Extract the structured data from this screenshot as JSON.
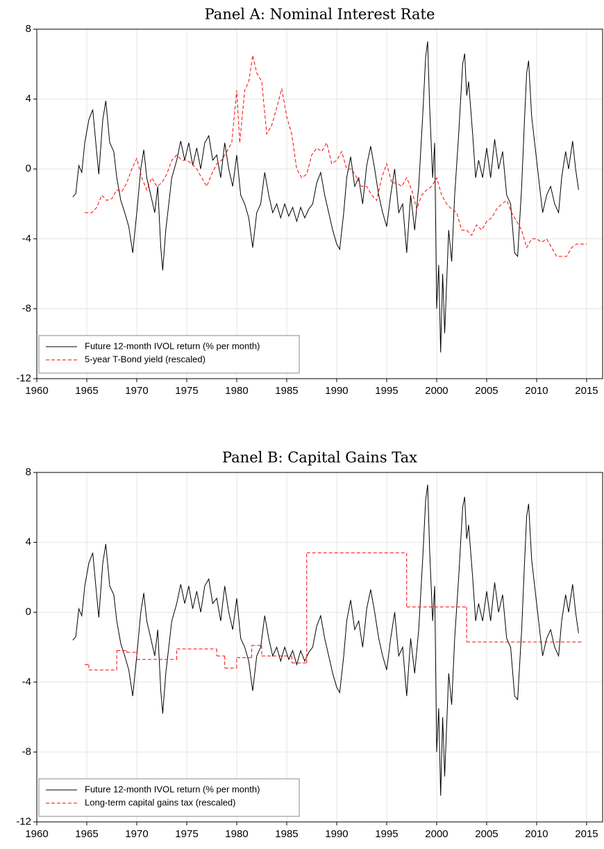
{
  "chart_data": [
    {
      "type": "line",
      "title": "Panel A: Nominal Interest Rate",
      "xlim": [
        1960,
        2016.6
      ],
      "ylim": [
        -12,
        8
      ],
      "xticks": [
        1960,
        1965,
        1970,
        1975,
        1980,
        1985,
        1990,
        1995,
        2000,
        2005,
        2010,
        2015
      ],
      "yticks": [
        -12,
        -8,
        -4,
        0,
        4,
        8
      ],
      "grid": true,
      "legend": "lower left",
      "series": [
        {
          "name": "Future 12-month IVOL return (% per month)",
          "color": "#000000",
          "dash": "solid",
          "x": [
            1963.6,
            1963.9,
            1964.2,
            1964.5,
            1964.8,
            1965.2,
            1965.6,
            1965.9,
            1966.2,
            1966.6,
            1966.9,
            1967.3,
            1967.7,
            1968.0,
            1968.4,
            1968.8,
            1969.2,
            1969.6,
            1970.0,
            1970.4,
            1970.7,
            1971.0,
            1971.4,
            1971.8,
            1972.1,
            1972.4,
            1972.6,
            1972.9,
            1973.2,
            1973.5,
            1974.0,
            1974.4,
            1974.8,
            1975.2,
            1975.6,
            1976.0,
            1976.4,
            1976.8,
            1977.2,
            1977.6,
            1978.0,
            1978.4,
            1978.8,
            1979.2,
            1979.6,
            1980.0,
            1980.4,
            1980.8,
            1981.2,
            1981.6,
            1982.0,
            1982.4,
            1982.8,
            1983.2,
            1983.6,
            1984.0,
            1984.4,
            1984.8,
            1985.2,
            1985.6,
            1986.0,
            1986.4,
            1986.8,
            1987.2,
            1987.6,
            1988.0,
            1988.4,
            1988.8,
            1989.2,
            1989.6,
            1990.0,
            1990.3,
            1990.7,
            1991.0,
            1991.4,
            1991.8,
            1992.2,
            1992.6,
            1993.0,
            1993.4,
            1993.8,
            1994.2,
            1994.6,
            1995.0,
            1995.4,
            1995.8,
            1996.2,
            1996.6,
            1997.0,
            1997.4,
            1997.8,
            1998.2,
            1998.6,
            1998.9,
            1999.1,
            1999.3,
            1999.6,
            1999.8,
            2000.0,
            2000.2,
            2000.4,
            2000.6,
            2000.8,
            2001.2,
            2001.5,
            2001.8,
            2002.2,
            2002.6,
            2002.8,
            2003.0,
            2003.2,
            2003.6,
            2003.9,
            2004.2,
            2004.6,
            2005.0,
            2005.4,
            2005.8,
            2006.2,
            2006.6,
            2007.0,
            2007.4,
            2007.8,
            2008.1,
            2008.5,
            2008.8,
            2009.0,
            2009.2,
            2009.5,
            2009.8,
            2010.2,
            2010.6,
            2011.0,
            2011.4,
            2011.8,
            2012.2,
            2012.5,
            2012.9,
            2013.2,
            2013.6,
            2013.9,
            2014.2
          ],
          "values": [
            -1.6,
            -1.4,
            0.2,
            -0.2,
            1.5,
            2.8,
            3.4,
            1.5,
            -0.3,
            2.8,
            3.9,
            1.5,
            1.0,
            -0.5,
            -1.8,
            -2.5,
            -3.3,
            -4.8,
            -2.5,
            0.0,
            1.1,
            -0.5,
            -1.5,
            -2.5,
            -1.0,
            -4.5,
            -5.8,
            -3.5,
            -2.0,
            -0.5,
            0.5,
            1.6,
            0.5,
            1.5,
            0.2,
            1.2,
            0.0,
            1.5,
            1.9,
            0.5,
            0.8,
            -0.5,
            1.5,
            0.0,
            -1.0,
            0.8,
            -1.5,
            -2.0,
            -2.8,
            -4.5,
            -2.5,
            -2.0,
            -0.2,
            -1.5,
            -2.5,
            -2.0,
            -2.8,
            -2.0,
            -2.7,
            -2.2,
            -3.0,
            -2.2,
            -2.8,
            -2.3,
            -2.0,
            -0.8,
            -0.2,
            -1.5,
            -2.5,
            -3.5,
            -4.3,
            -4.6,
            -2.5,
            -0.5,
            0.7,
            -1.0,
            -0.5,
            -2.0,
            0.2,
            1.3,
            0.0,
            -1.5,
            -2.5,
            -3.3,
            -1.5,
            0.0,
            -2.5,
            -2.0,
            -4.8,
            -1.5,
            -3.5,
            -1.0,
            3.0,
            6.4,
            7.3,
            3.5,
            -0.5,
            1.5,
            -8.0,
            -5.5,
            -10.5,
            -6.0,
            -9.4,
            -3.5,
            -5.3,
            -1.5,
            2.0,
            6.0,
            6.6,
            4.2,
            5.0,
            2.0,
            -0.5,
            0.5,
            -0.5,
            1.2,
            -0.5,
            1.7,
            0.0,
            1.0,
            -1.5,
            -2.0,
            -4.8,
            -5.0,
            -1.0,
            3.0,
            5.5,
            6.2,
            3.0,
            1.5,
            -0.5,
            -2.5,
            -1.5,
            -1.0,
            -2.0,
            -2.5,
            -0.5,
            1.0,
            0.0,
            1.6,
            0.0,
            -1.2
          ]
        },
        {
          "name": "5-year T-Bond yield (rescaled)",
          "color": "#ff0000",
          "dash": "dashed",
          "x": [
            1964.8,
            1965.5,
            1966.0,
            1966.5,
            1967.0,
            1967.5,
            1968.0,
            1968.5,
            1969.0,
            1969.5,
            1970.0,
            1970.5,
            1971.0,
            1971.5,
            1972.0,
            1972.5,
            1973.0,
            1973.5,
            1974.0,
            1974.5,
            1975.0,
            1975.5,
            1976.0,
            1976.5,
            1977.0,
            1977.5,
            1978.0,
            1978.5,
            1979.0,
            1979.5,
            1980.0,
            1980.3,
            1980.8,
            1981.2,
            1981.6,
            1982.0,
            1982.5,
            1983.0,
            1983.5,
            1984.0,
            1984.5,
            1985.0,
            1985.5,
            1986.0,
            1986.5,
            1987.0,
            1987.5,
            1988.0,
            1988.5,
            1989.0,
            1989.5,
            1990.0,
            1990.5,
            1991.0,
            1991.5,
            1992.0,
            1992.5,
            1993.0,
            1993.5,
            1994.0,
            1994.5,
            1995.0,
            1995.5,
            1996.0,
            1996.5,
            1997.0,
            1997.5,
            1998.0,
            1998.5,
            1999.0,
            1999.5,
            2000.0,
            2000.5,
            2001.0,
            2001.5,
            2002.0,
            2002.5,
            2003.0,
            2003.5,
            2004.0,
            2004.5,
            2005.0,
            2005.5,
            2006.0,
            2006.5,
            2007.0,
            2007.5,
            2008.0,
            2008.5,
            2009.0,
            2009.5,
            2010.0,
            2010.5,
            2011.0,
            2011.5,
            2012.0,
            2012.5,
            2013.0,
            2013.5,
            2014.0,
            2014.5,
            2015.0
          ],
          "values": [
            -2.5,
            -2.5,
            -2.2,
            -1.5,
            -1.8,
            -1.7,
            -1.2,
            -1.3,
            -0.8,
            0.0,
            0.6,
            -0.5,
            -1.2,
            -0.5,
            -1.0,
            -0.8,
            -0.3,
            0.5,
            0.8,
            0.5,
            0.5,
            0.3,
            0.0,
            -0.5,
            -1.0,
            -0.3,
            0.3,
            0.5,
            1.0,
            1.5,
            4.5,
            1.5,
            4.5,
            5.0,
            6.5,
            5.5,
            5.0,
            2.0,
            2.5,
            3.5,
            4.6,
            3.0,
            2.0,
            0.0,
            -0.5,
            -0.3,
            0.8,
            1.2,
            1.0,
            1.5,
            0.3,
            0.5,
            1.0,
            0.0,
            0.0,
            -0.5,
            -1.0,
            -1.0,
            -1.5,
            -1.8,
            -0.5,
            0.3,
            -0.8,
            -0.8,
            -1.0,
            -0.5,
            -1.2,
            -2.3,
            -1.5,
            -1.2,
            -1.0,
            -0.5,
            -1.5,
            -2.0,
            -2.3,
            -2.5,
            -3.5,
            -3.5,
            -3.8,
            -3.2,
            -3.5,
            -3.0,
            -2.8,
            -2.3,
            -2.0,
            -1.8,
            -2.5,
            -3.0,
            -3.5,
            -4.5,
            -4.0,
            -4.0,
            -4.2,
            -4.0,
            -4.5,
            -5.0,
            -5.0,
            -5.0,
            -4.5,
            -4.3,
            -4.3,
            -4.3
          ]
        }
      ]
    },
    {
      "type": "line",
      "title": "Panel B: Capital Gains Tax",
      "xlim": [
        1960,
        2016.6
      ],
      "ylim": [
        -12,
        8
      ],
      "xticks": [
        1960,
        1965,
        1970,
        1975,
        1980,
        1985,
        1990,
        1995,
        2000,
        2005,
        2010,
        2015
      ],
      "yticks": [
        -12,
        -8,
        -4,
        0,
        4,
        8
      ],
      "grid": true,
      "legend": "lower left",
      "series": [
        {
          "name": "Future 12-month IVOL return (% per month)",
          "color": "#000000",
          "dash": "solid",
          "x": [
            1963.6,
            1963.9,
            1964.2,
            1964.5,
            1964.8,
            1965.2,
            1965.6,
            1965.9,
            1966.2,
            1966.6,
            1966.9,
            1967.3,
            1967.7,
            1968.0,
            1968.4,
            1968.8,
            1969.2,
            1969.6,
            1970.0,
            1970.4,
            1970.7,
            1971.0,
            1971.4,
            1971.8,
            1972.1,
            1972.4,
            1972.6,
            1972.9,
            1973.2,
            1973.5,
            1974.0,
            1974.4,
            1974.8,
            1975.2,
            1975.6,
            1976.0,
            1976.4,
            1976.8,
            1977.2,
            1977.6,
            1978.0,
            1978.4,
            1978.8,
            1979.2,
            1979.6,
            1980.0,
            1980.4,
            1980.8,
            1981.2,
            1981.6,
            1982.0,
            1982.4,
            1982.8,
            1983.2,
            1983.6,
            1984.0,
            1984.4,
            1984.8,
            1985.2,
            1985.6,
            1986.0,
            1986.4,
            1986.8,
            1987.2,
            1987.6,
            1988.0,
            1988.4,
            1988.8,
            1989.2,
            1989.6,
            1990.0,
            1990.3,
            1990.7,
            1991.0,
            1991.4,
            1991.8,
            1992.2,
            1992.6,
            1993.0,
            1993.4,
            1993.8,
            1994.2,
            1994.6,
            1995.0,
            1995.4,
            1995.8,
            1996.2,
            1996.6,
            1997.0,
            1997.4,
            1997.8,
            1998.2,
            1998.6,
            1998.9,
            1999.1,
            1999.3,
            1999.6,
            1999.8,
            2000.0,
            2000.2,
            2000.4,
            2000.6,
            2000.8,
            2001.2,
            2001.5,
            2001.8,
            2002.2,
            2002.6,
            2002.8,
            2003.0,
            2003.2,
            2003.6,
            2003.9,
            2004.2,
            2004.6,
            2005.0,
            2005.4,
            2005.8,
            2006.2,
            2006.6,
            2007.0,
            2007.4,
            2007.8,
            2008.1,
            2008.5,
            2008.8,
            2009.0,
            2009.2,
            2009.5,
            2009.8,
            2010.2,
            2010.6,
            2011.0,
            2011.4,
            2011.8,
            2012.2,
            2012.5,
            2012.9,
            2013.2,
            2013.6,
            2013.9,
            2014.2
          ],
          "values": [
            -1.6,
            -1.4,
            0.2,
            -0.2,
            1.5,
            2.8,
            3.4,
            1.5,
            -0.3,
            2.8,
            3.9,
            1.5,
            1.0,
            -0.5,
            -1.8,
            -2.5,
            -3.3,
            -4.8,
            -2.5,
            0.0,
            1.1,
            -0.5,
            -1.5,
            -2.5,
            -1.0,
            -4.5,
            -5.8,
            -3.5,
            -2.0,
            -0.5,
            0.5,
            1.6,
            0.5,
            1.5,
            0.2,
            1.2,
            0.0,
            1.5,
            1.9,
            0.5,
            0.8,
            -0.5,
            1.5,
            0.0,
            -1.0,
            0.8,
            -1.5,
            -2.0,
            -2.8,
            -4.5,
            -2.5,
            -2.0,
            -0.2,
            -1.5,
            -2.5,
            -2.0,
            -2.8,
            -2.0,
            -2.7,
            -2.2,
            -3.0,
            -2.2,
            -2.8,
            -2.3,
            -2.0,
            -0.8,
            -0.2,
            -1.5,
            -2.5,
            -3.5,
            -4.3,
            -4.6,
            -2.5,
            -0.5,
            0.7,
            -1.0,
            -0.5,
            -2.0,
            0.2,
            1.3,
            0.0,
            -1.5,
            -2.5,
            -3.3,
            -1.5,
            0.0,
            -2.5,
            -2.0,
            -4.8,
            -1.5,
            -3.5,
            -1.0,
            3.0,
            6.4,
            7.3,
            3.5,
            -0.5,
            1.5,
            -8.0,
            -5.5,
            -10.5,
            -6.0,
            -9.4,
            -3.5,
            -5.3,
            -1.5,
            2.0,
            6.0,
            6.6,
            4.2,
            5.0,
            2.0,
            -0.5,
            0.5,
            -0.5,
            1.2,
            -0.5,
            1.7,
            0.0,
            1.0,
            -1.5,
            -2.0,
            -4.8,
            -5.0,
            -1.0,
            3.0,
            5.5,
            6.2,
            3.0,
            1.5,
            -0.5,
            -2.5,
            -1.5,
            -1.0,
            -2.0,
            -2.5,
            -0.5,
            1.0,
            0.0,
            1.6,
            0.0,
            -1.2
          ]
        },
        {
          "name": "Long-term capital gains tax (rescaled)",
          "color": "#ff0000",
          "dash": "dashed",
          "step": "post",
          "x": [
            1964.8,
            1965.2,
            1968.0,
            1969.0,
            1970.0,
            1974.0,
            1978.0,
            1978.8,
            1980.0,
            1981.5,
            1982.5,
            1985.5,
            1987.0,
            1997.0,
            2003.0,
            2014.5
          ],
          "values": [
            -3.0,
            -3.3,
            -2.2,
            -2.3,
            -2.7,
            -2.1,
            -2.5,
            -3.2,
            -2.6,
            -1.9,
            -2.5,
            -2.9,
            3.4,
            0.3,
            -1.7,
            -1.7
          ]
        }
      ]
    }
  ]
}
